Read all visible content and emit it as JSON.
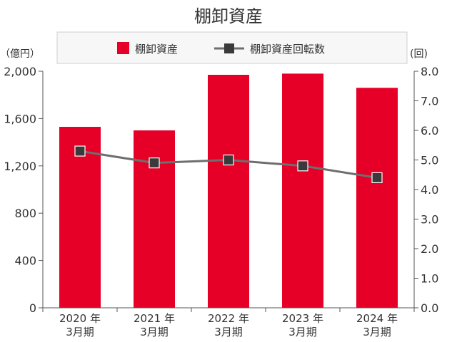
{
  "chart_data": {
    "type": "bar+line",
    "title": "棚卸資産",
    "left_unit": "（億円）",
    "right_unit": "(回)",
    "categories": [
      {
        "year": "2020 年",
        "period": "3月期"
      },
      {
        "year": "2021 年",
        "period": "3月期"
      },
      {
        "year": "2022 年",
        "period": "3月期"
      },
      {
        "year": "2023 年",
        "period": "3月期"
      },
      {
        "year": "2024 年",
        "period": "3月期"
      }
    ],
    "series": [
      {
        "name": "棚卸資産",
        "type": "bar",
        "axis": "left",
        "color": "#e60027",
        "values": [
          1530,
          1500,
          1970,
          1980,
          1860
        ]
      },
      {
        "name": "棚卸資産回転数",
        "type": "line",
        "axis": "right",
        "color": "#6e6e6e",
        "marker_color": "#3a3a3a",
        "values": [
          5.3,
          4.9,
          5.0,
          4.8,
          4.4
        ]
      }
    ],
    "y_left": {
      "min": 0,
      "max": 2000,
      "ticks": [
        {
          "v": 0,
          "label": "0"
        },
        {
          "v": 400,
          "label": "400"
        },
        {
          "v": 800,
          "label": "800"
        },
        {
          "v": 1200,
          "label": "1,200"
        },
        {
          "v": 1600,
          "label": "1,600"
        },
        {
          "v": 2000,
          "label": "2,000"
        }
      ]
    },
    "y_right": {
      "min": 0,
      "max": 8,
      "ticks": [
        {
          "v": 0,
          "label": "0.0"
        },
        {
          "v": 1,
          "label": "1.0"
        },
        {
          "v": 2,
          "label": "2.0"
        },
        {
          "v": 3,
          "label": "3.0"
        },
        {
          "v": 4,
          "label": "4.0"
        },
        {
          "v": 5,
          "label": "5.0"
        },
        {
          "v": 6,
          "label": "6.0"
        },
        {
          "v": 7,
          "label": "7.0"
        },
        {
          "v": 8,
          "label": "8.0"
        }
      ]
    },
    "legend_placement": "top-center",
    "grid": false
  }
}
